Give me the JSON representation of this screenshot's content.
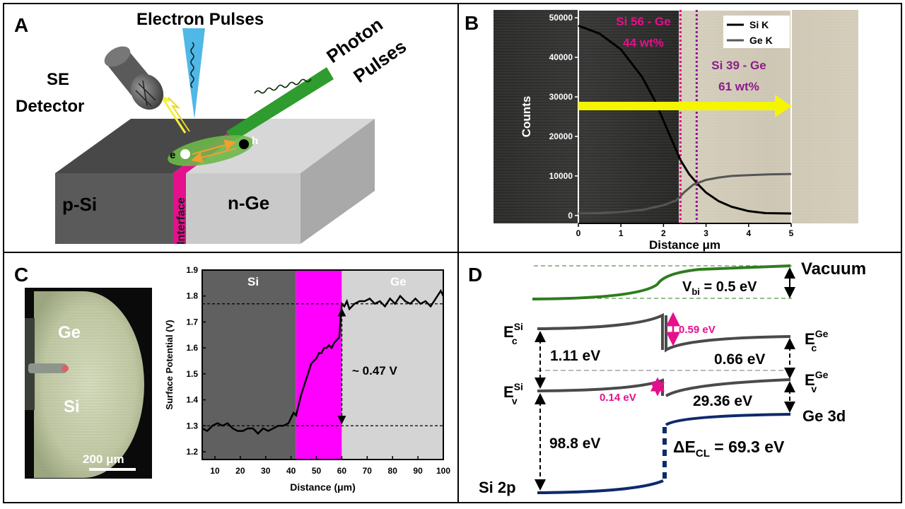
{
  "panel_a": {
    "label": "A",
    "electron_pulses": "Electron Pulses",
    "photon_pulses_l1": "Photon",
    "photon_pulses_l2": "Pulses",
    "se_l1": "SE",
    "se_l2": "Detector",
    "e": "e",
    "h": "h",
    "psi": "p-Si",
    "nge": "n-Ge",
    "interface": "Interface",
    "colors": {
      "pSi": "#555555",
      "nGe": "#d4d4d4",
      "interface": "#e4108c",
      "electron_beam": "#4fb8e6",
      "photon_beam": "#2e9c2e",
      "spot": "#6db84a",
      "arrow": "#f0a030",
      "se_arrow": "#f5f03c"
    }
  },
  "panel_b": {
    "label": "B",
    "region_left_l1": "Si 56 - Ge",
    "region_left_l2": "44 wt%",
    "region_right_l1": "Si 39 - Ge",
    "region_right_l2": "61 wt%",
    "colors": {
      "left_label": "#e4108c",
      "right_label": "#8c1a8c",
      "arrow": "#f5f500"
    }
  },
  "panel_c": {
    "label": "C",
    "photo_ge": "Ge",
    "photo_si": "Si",
    "scale_bar": "200 μm",
    "plot_si": "Si",
    "plot_ge": "Ge",
    "annotation": "~ 0.47 V"
  },
  "panel_d": {
    "label": "D",
    "vacuum": "Vacuum",
    "vbi": "V",
    "vbi_sub": "bi",
    "vbi_val": " = 0.5 eV",
    "ec_si": "E",
    "ec_si_sup": "Si",
    "ec_si_sub": "c",
    "ec_ge": "E",
    "ec_ge_sup": "Ge",
    "ec_ge_sub": "c",
    "ev_si": "E",
    "ev_si_sup": "Si",
    "ev_si_sub": "v",
    "ev_ge": "E",
    "ev_ge_sup": "Ge",
    "ev_ge_sub": "v",
    "gap_si": "1.11 eV",
    "gap_ge": "0.66 eV",
    "dec": "0.59 eV",
    "dev": "0.14 eV",
    "ge3d_gap": "29.36 eV",
    "ge3d": "Ge 3d",
    "si2p_gap": "98.8 eV",
    "si2p": "Si 2p",
    "dcl": "ΔE",
    "dcl_sub": "CL",
    "dcl_val": " = 69.3 eV",
    "colors": {
      "vacuum": "#2e7d1e",
      "bands": "#4a4a4a",
      "core": "#0d2a6b",
      "accent": "#e4108c"
    }
  },
  "chart_data": [
    {
      "type": "line",
      "panel": "B",
      "title": "",
      "xlabel": "Distance μm",
      "ylabel": "Counts",
      "xlim": [
        0,
        5
      ],
      "ylim": [
        -2000,
        52000
      ],
      "x_ticks": [
        "0",
        "1",
        "2",
        "3",
        "4",
        "5"
      ],
      "y_ticks": [
        "0",
        "10000",
        "20000",
        "30000",
        "40000",
        "50000"
      ],
      "legend": {
        "placement": "top-right",
        "entries": [
          "Si K",
          "Ge K"
        ]
      },
      "series": [
        {
          "name": "Si K",
          "color": "#000000",
          "x": [
            0,
            0.5,
            1,
            1.5,
            1.8,
            2.0,
            2.2,
            2.4,
            2.6,
            2.8,
            3.0,
            3.3,
            3.6,
            4.0,
            4.4,
            5.0
          ],
          "values": [
            48000,
            46000,
            42000,
            35000,
            29000,
            24000,
            19000,
            14000,
            10500,
            8000,
            5800,
            3600,
            2200,
            1100,
            600,
            500
          ]
        },
        {
          "name": "Ge K",
          "color": "#555555",
          "x": [
            0,
            0.5,
            1,
            1.5,
            2.0,
            2.3,
            2.5,
            2.7,
            3.0,
            3.3,
            3.6,
            4.0,
            4.5,
            5.0
          ],
          "values": [
            500,
            600,
            900,
            1400,
            2600,
            3800,
            6000,
            7800,
            9000,
            9600,
            10000,
            10200,
            10400,
            10500
          ]
        }
      ],
      "markers": [
        {
          "name": "left boundary",
          "x": 2.4,
          "color": "#e4108c"
        },
        {
          "name": "right boundary",
          "x": 2.78,
          "color": "#8c1a8c"
        }
      ]
    },
    {
      "type": "line",
      "panel": "C",
      "title": "",
      "xlabel": "Distance (μm)",
      "ylabel": "Surface Potential (V)",
      "xlim": [
        5,
        100
      ],
      "ylim": [
        1.17,
        1.9
      ],
      "x_ticks": [
        "10",
        "20",
        "30",
        "40",
        "50",
        "60",
        "70",
        "80",
        "90",
        "100"
      ],
      "y_ticks": [
        "1.2",
        "1.3",
        "1.4",
        "1.5",
        "1.6",
        "1.7",
        "1.8",
        "1.9"
      ],
      "regions": [
        {
          "name": "Si",
          "from": 5,
          "to": 42,
          "color": "#606060"
        },
        {
          "name": "interface",
          "from": 42,
          "to": 60,
          "color": "#ff00ff"
        },
        {
          "name": "Ge",
          "from": 60,
          "to": 100,
          "color": "#d4d4d4"
        }
      ],
      "reference_lines": [
        1.77,
        1.3
      ],
      "series": [
        {
          "name": "Surface Potential",
          "color": "#000000",
          "x": [
            5,
            7,
            9,
            11,
            13,
            15,
            17,
            19,
            21,
            23,
            25,
            27,
            29,
            31,
            33,
            35,
            37,
            39,
            41,
            42,
            43,
            44,
            45,
            46,
            47,
            48,
            49,
            50,
            51,
            52,
            53,
            54,
            55,
            56,
            57,
            58,
            59,
            60,
            61,
            62,
            63,
            65,
            67,
            69,
            71,
            73,
            75,
            77,
            79,
            81,
            83,
            85,
            87,
            89,
            91,
            93,
            95,
            97,
            99,
            100
          ],
          "values": [
            1.29,
            1.28,
            1.3,
            1.31,
            1.3,
            1.31,
            1.29,
            1.28,
            1.28,
            1.29,
            1.29,
            1.27,
            1.29,
            1.28,
            1.29,
            1.3,
            1.3,
            1.31,
            1.35,
            1.34,
            1.38,
            1.42,
            1.45,
            1.48,
            1.51,
            1.54,
            1.55,
            1.56,
            1.58,
            1.58,
            1.6,
            1.6,
            1.61,
            1.6,
            1.62,
            1.63,
            1.64,
            1.77,
            1.76,
            1.78,
            1.75,
            1.77,
            1.78,
            1.78,
            1.79,
            1.77,
            1.78,
            1.76,
            1.79,
            1.77,
            1.8,
            1.78,
            1.77,
            1.79,
            1.77,
            1.78,
            1.76,
            1.79,
            1.82,
            1.8
          ]
        }
      ]
    }
  ]
}
